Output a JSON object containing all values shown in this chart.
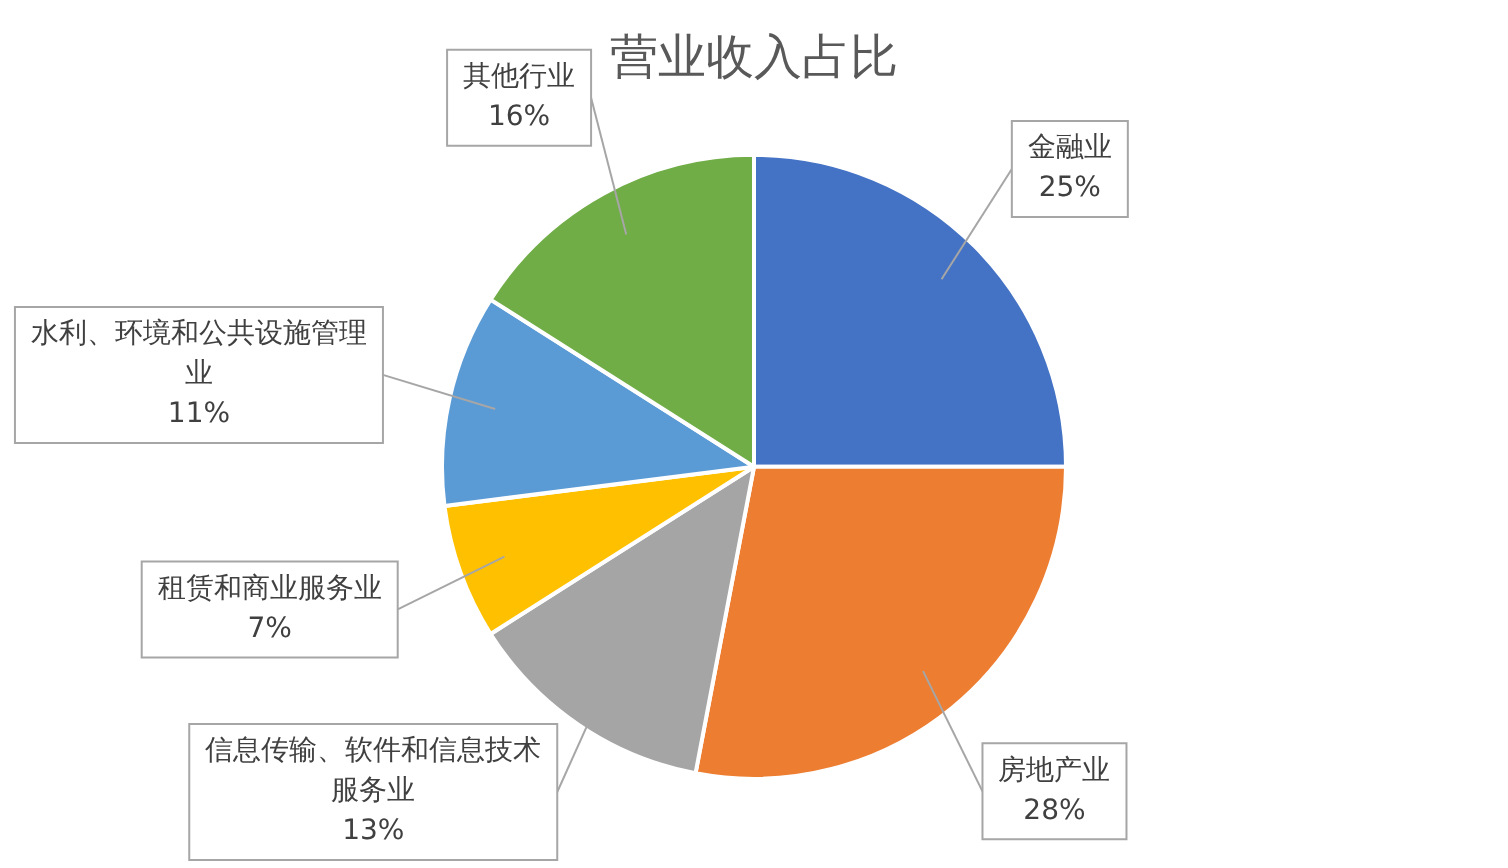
{
  "chart_data": {
    "type": "pie",
    "title": "营业收入占比",
    "categories": [
      "金融业",
      "房地产业",
      "信息传输、软件和信息技术服务业",
      "租赁和商业服务业",
      "水利、环境和公共设施管理业",
      "其他行业"
    ],
    "values": [
      25,
      28,
      13,
      7,
      11,
      16
    ],
    "colors": [
      "#4472c4",
      "#ed7d31",
      "#a5a5a5",
      "#ffc000",
      "#5b9bd5",
      "#70ad47"
    ],
    "value_labels": [
      "25%",
      "28%",
      "13%",
      "7%",
      "11%",
      "16%"
    ],
    "legend": false
  }
}
